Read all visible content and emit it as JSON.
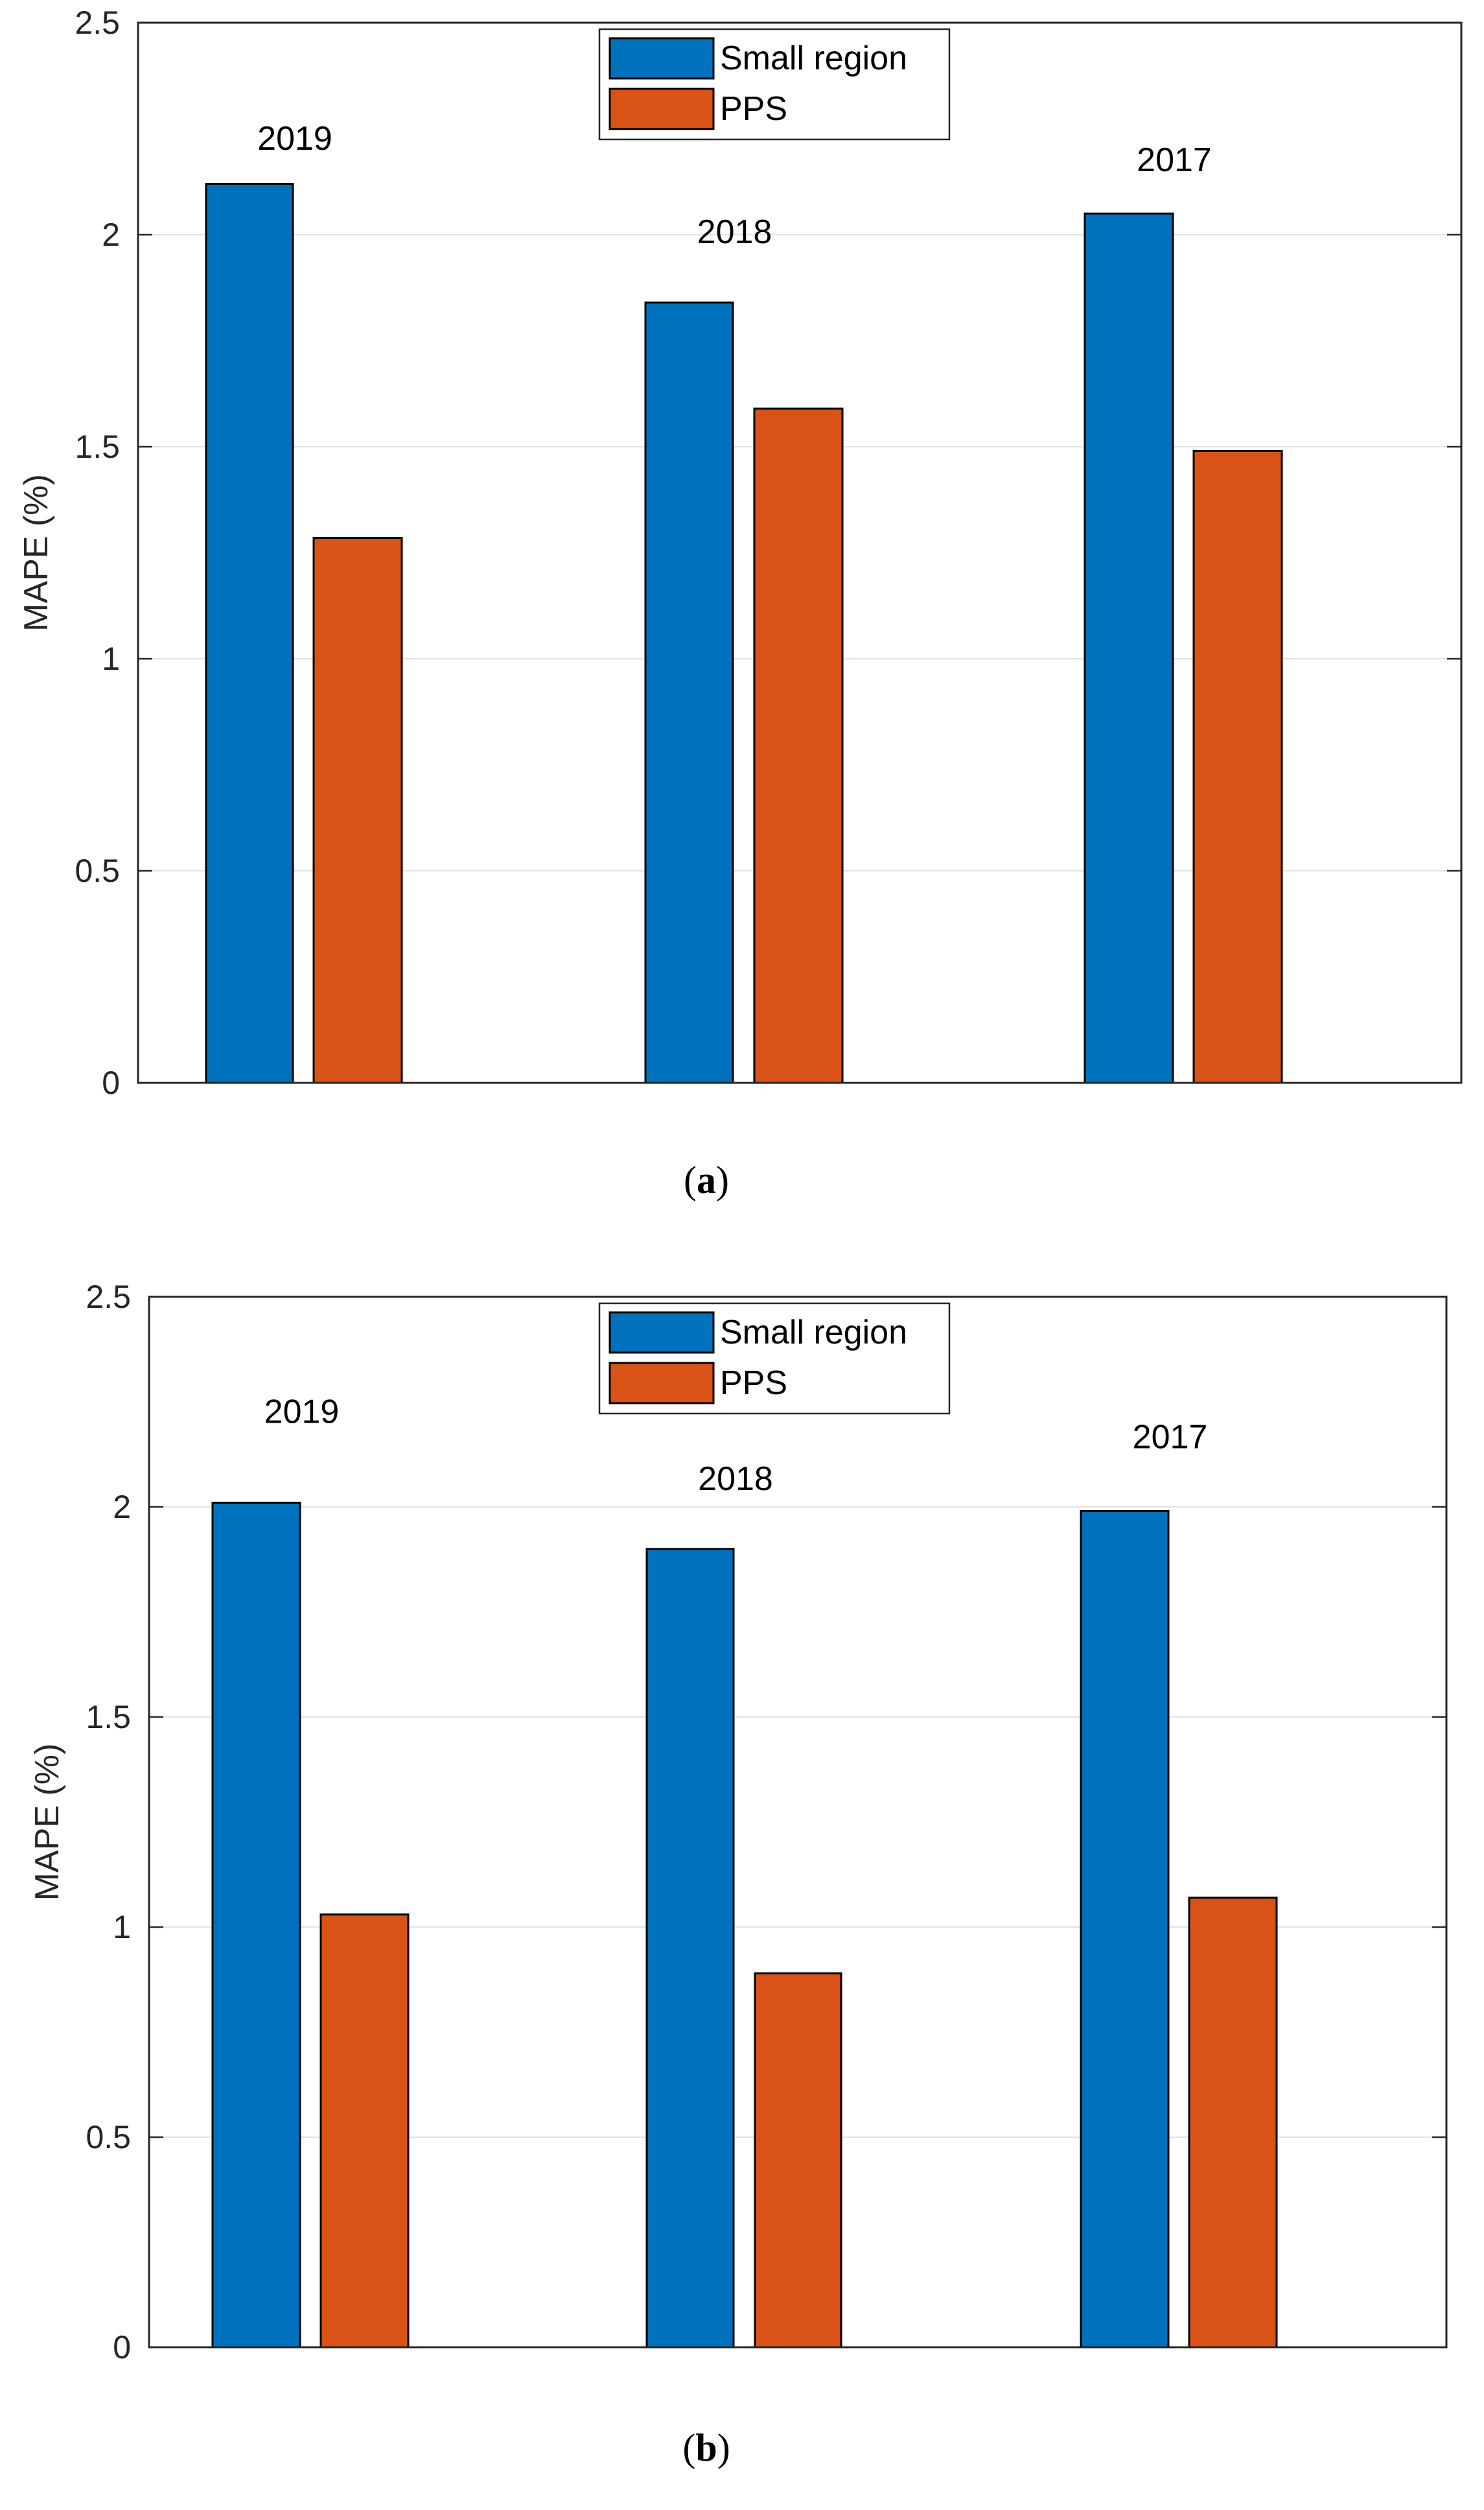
{
  "chart_data": [
    {
      "id": "a",
      "type": "bar",
      "caption_open": "(",
      "caption_letter": "a",
      "caption_close": ")",
      "title": "",
      "xlabel": "",
      "ylabel": "MAPE (%)",
      "ylim": [
        0,
        2.5
      ],
      "yticks": [
        "0",
        "0.5",
        "1",
        "1.5",
        "2",
        "2.5"
      ],
      "grid": true,
      "legend_position": "top-center",
      "categories": [
        "2019",
        "2018",
        "2017"
      ],
      "series": [
        {
          "name": "Small region",
          "color": "#0072BD",
          "values": [
            2.12,
            1.84,
            2.05
          ]
        },
        {
          "name": "PPS",
          "color": "#D95319",
          "values": [
            1.285,
            1.59,
            1.49
          ]
        }
      ],
      "annotations": [
        {
          "text": "2019",
          "x": "2019",
          "y": 2.2
        },
        {
          "text": "2018",
          "x": "2018",
          "y": 1.98
        },
        {
          "text": "2017",
          "x": "2017",
          "y": 2.15
        }
      ]
    },
    {
      "id": "b",
      "type": "bar",
      "caption_open": "(",
      "caption_letter": "b",
      "caption_close": ")",
      "title": "",
      "xlabel": "",
      "ylabel": "MAPE (%)",
      "ylim": [
        0,
        2.5
      ],
      "yticks": [
        "0",
        "0.5",
        "1",
        "1.5",
        "2",
        "2.5"
      ],
      "grid": true,
      "legend_position": "top-center",
      "categories": [
        "2019",
        "2018",
        "2017"
      ],
      "series": [
        {
          "name": "Small region",
          "color": "#0072BD",
          "values": [
            2.01,
            1.9,
            1.99
          ]
        },
        {
          "name": "PPS",
          "color": "#D95319",
          "values": [
            1.03,
            0.89,
            1.07
          ]
        }
      ],
      "annotations": [
        {
          "text": "2019",
          "x": "2019",
          "y": 2.2
        },
        {
          "text": "2018",
          "x": "2018",
          "y": 2.04
        },
        {
          "text": "2017",
          "x": "2017",
          "y": 2.14
        }
      ]
    }
  ]
}
